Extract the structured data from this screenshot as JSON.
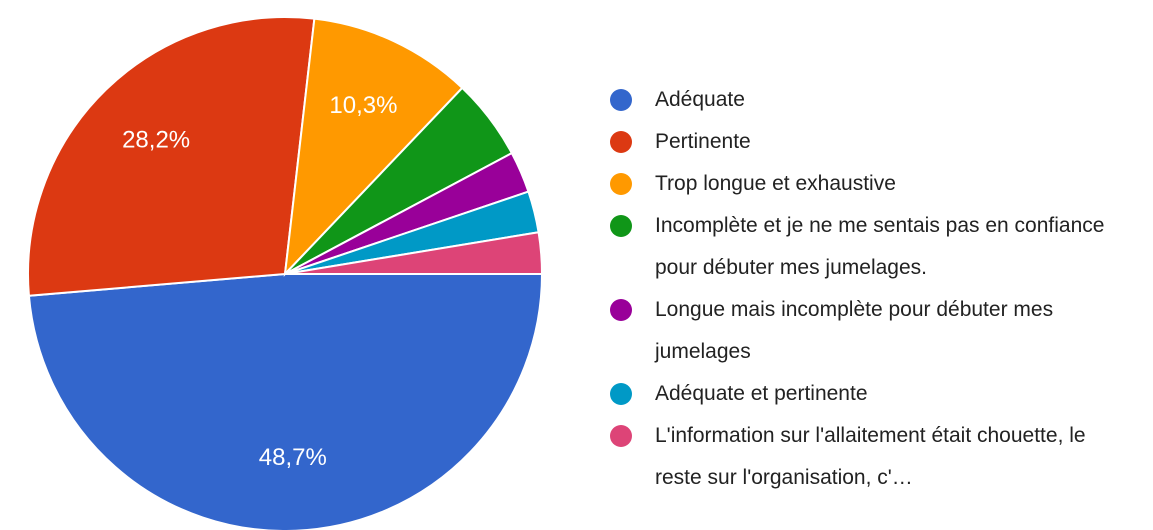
{
  "chart_data": {
    "type": "pie",
    "categories": [
      "Adéquate",
      "Pertinente",
      "Trop longue et exhaustive",
      "Incomplète et je ne me sentais pas en confiance pour débuter mes jumelages.",
      "Longue mais incomplète pour débuter mes jumelages",
      "Adéquate et pertinente",
      "L'information sur l'allaitement était chouette, le reste sur l'organisation, c'…"
    ],
    "values": [
      48.7,
      28.2,
      10.3,
      5.1,
      2.6,
      2.6,
      2.6
    ],
    "value_labels": [
      "48,7%",
      "28,2%",
      "10,3%",
      null,
      null,
      null,
      null
    ],
    "colors": [
      "#3366cc",
      "#dc3912",
      "#ff9900",
      "#109618",
      "#990099",
      "#0099c6",
      "#dd4477"
    ],
    "legend": "right"
  }
}
